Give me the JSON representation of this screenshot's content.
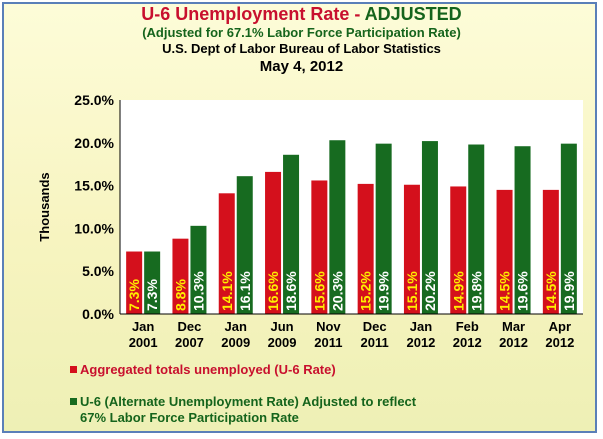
{
  "header": {
    "title_part1": "U-6 Unemployment Rate - ",
    "title_part2": "ADJUSTED",
    "subtitle": "(Adjusted for 67.1% Labor Force Participation Rate)",
    "source": "U.S. Dept of Labor Bureau of Labor Statistics",
    "date": "May 4, 2012"
  },
  "colors": {
    "series1": "#d4101c",
    "series2": "#176b20",
    "label_yellow": "#ffee00",
    "label_white": "#ffffff",
    "plot_bg": "#ffffff"
  },
  "chart_data": {
    "type": "bar",
    "ylabel": "Thousands",
    "xlabel": "",
    "ylim": [
      0,
      25
    ],
    "yticks": [
      "0.0%",
      "5.0%",
      "10.0%",
      "15.0%",
      "20.0%",
      "25.0%"
    ],
    "grid": false,
    "categories": [
      [
        "Jan",
        "2001"
      ],
      [
        "Dec",
        "2007"
      ],
      [
        "Jan",
        "2009"
      ],
      [
        "Jun",
        "2009"
      ],
      [
        "Nov",
        "2011"
      ],
      [
        "Dec",
        "2011"
      ],
      [
        "Jan",
        "2012"
      ],
      [
        "Feb",
        "2012"
      ],
      [
        "Mar",
        "2012"
      ],
      [
        "Apr",
        "2012"
      ]
    ],
    "series": [
      {
        "name": "Aggregated totals unemployed (U-6 Rate)",
        "values": [
          7.3,
          8.8,
          14.1,
          16.6,
          15.6,
          15.2,
          15.1,
          14.9,
          14.5,
          14.5
        ],
        "labels": [
          "7.3%",
          "8.8%",
          "14.1%",
          "16.6%",
          "15.6%",
          "15.2%",
          "15.1%",
          "14.9%",
          "14.5%",
          "14.5%"
        ]
      },
      {
        "name_line1": "U-6 (Alternate Unemployment Rate) Adjusted to reflect",
        "name_line2": "67% Labor Force Participation Rate",
        "values": [
          7.3,
          10.3,
          16.1,
          18.6,
          20.3,
          19.9,
          20.2,
          19.8,
          19.6,
          19.9
        ],
        "labels": [
          "7.3%",
          "10.3%",
          "16.1%",
          "18.6%",
          "20.3%",
          "19.9%",
          "20.2%",
          "19.8%",
          "19.6%",
          "19.9%"
        ]
      }
    ],
    "legend_position": "bottom-left"
  }
}
